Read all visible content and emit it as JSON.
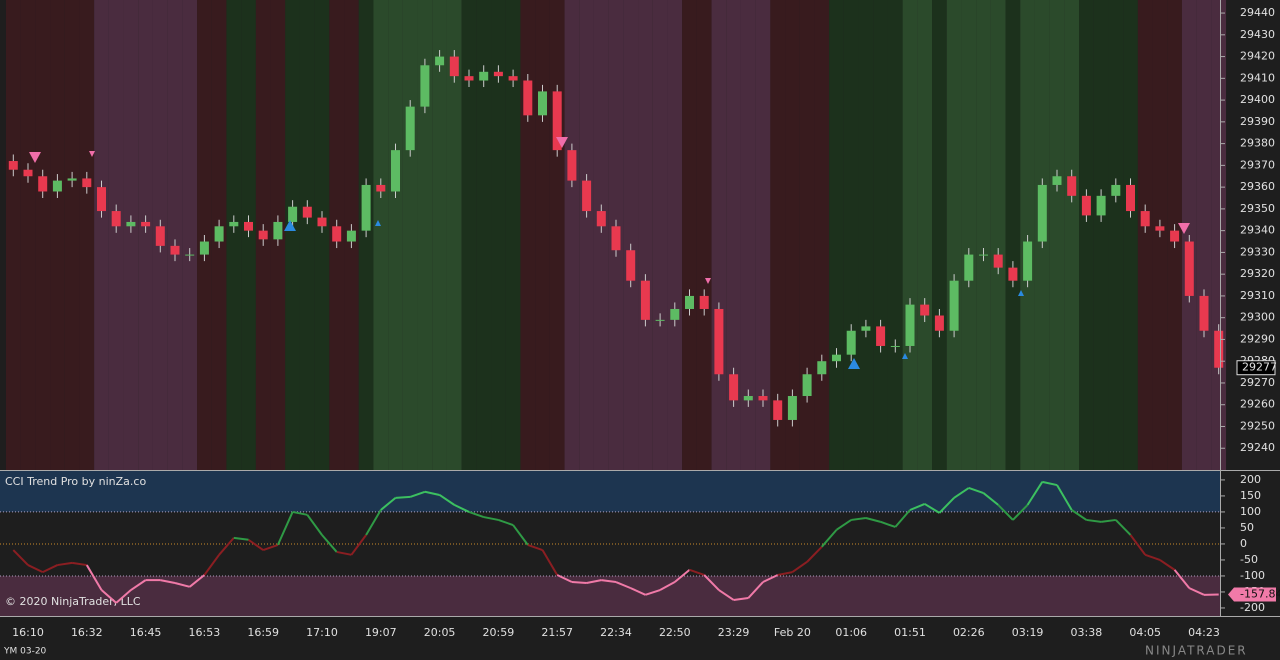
{
  "chart_data": [
    {
      "type": "candlestick",
      "symbol": "YM 03-20",
      "copyright": "© 2020 NinjaTrader, LLC",
      "brand": "NINJATRADER",
      "categories": [
        null,
        "16:10",
        null,
        null,
        null,
        "16:32",
        null,
        null,
        null,
        "16:45",
        null,
        null,
        null,
        "16:53",
        null,
        null,
        null,
        "16:59",
        null,
        null,
        null,
        "17:10",
        null,
        null,
        null,
        "19:07",
        null,
        null,
        null,
        "20:05",
        null,
        null,
        null,
        "20:59",
        null,
        null,
        null,
        "21:57",
        null,
        null,
        null,
        "22:34",
        null,
        null,
        null,
        "22:50",
        null,
        null,
        null,
        "23:29",
        null,
        null,
        null,
        "Feb 20",
        null,
        null,
        null,
        "01:06",
        null,
        null,
        null,
        "01:51",
        null,
        null,
        null,
        "02:26",
        null,
        null,
        null,
        "03:19",
        null,
        null,
        null,
        "03:38",
        null,
        null,
        null,
        "04:05",
        null,
        null,
        null,
        "04:23",
        null
      ],
      "open": [
        29372,
        29368,
        29365,
        29358,
        29363,
        29364,
        29360,
        29349,
        29342,
        29344,
        29342,
        29333,
        29329,
        29329,
        29335,
        29342,
        29344,
        29340,
        29336,
        29344,
        29351,
        29346,
        29342,
        29335,
        29340,
        29361,
        29358,
        29377,
        29397,
        29416,
        29420,
        29411,
        29409,
        29413,
        29411,
        29409,
        29393,
        29404,
        29377,
        29363,
        29349,
        29342,
        29331,
        29317,
        29299,
        29299,
        29304,
        29310,
        29304,
        29274,
        29262,
        29264,
        29262,
        29253,
        29264,
        29274,
        29280,
        29283,
        29294,
        29296,
        29287,
        29287,
        29306,
        29301,
        29294,
        29317,
        29329,
        29329,
        29323,
        29317,
        29335,
        29361,
        29365,
        29356,
        29347,
        29356,
        29361,
        29349,
        29342,
        29340,
        29335,
        29310,
        29294
      ],
      "high": [
        29375,
        29371,
        29368,
        29366,
        29367,
        29367,
        29363,
        29352,
        29347,
        29347,
        29345,
        29336,
        29332,
        29338,
        29345,
        29347,
        29347,
        29343,
        29347,
        29354,
        29354,
        29349,
        29345,
        29343,
        29364,
        29364,
        29380,
        29400,
        29419,
        29423,
        29423,
        29414,
        29416,
        29416,
        29414,
        29412,
        29407,
        29407,
        29380,
        29366,
        29352,
        29345,
        29334,
        29320,
        29302,
        29307,
        29313,
        29313,
        29307,
        29277,
        29267,
        29267,
        29265,
        29267,
        29277,
        29283,
        29286,
        29297,
        29299,
        29299,
        29290,
        29309,
        29309,
        29304,
        29320,
        29332,
        29332,
        29332,
        29326,
        29338,
        29364,
        29368,
        29368,
        29359,
        29359,
        29364,
        29364,
        29352,
        29345,
        29343,
        29338,
        29313,
        29297
      ],
      "low": [
        29365,
        29362,
        29355,
        29355,
        29360,
        29357,
        29346,
        29339,
        29339,
        29339,
        29330,
        29326,
        29326,
        29326,
        29332,
        29339,
        29337,
        29333,
        29333,
        29341,
        29343,
        29339,
        29332,
        29332,
        29337,
        29355,
        29355,
        29374,
        29394,
        29413,
        29408,
        29406,
        29406,
        29408,
        29406,
        29390,
        29390,
        29374,
        29360,
        29346,
        29339,
        29328,
        29314,
        29296,
        29296,
        29296,
        29301,
        29301,
        29271,
        29259,
        29259,
        29259,
        29250,
        29250,
        29261,
        29271,
        29277,
        29280,
        29291,
        29284,
        29284,
        29284,
        29298,
        29291,
        29291,
        29314,
        29326,
        29320,
        29314,
        29314,
        29332,
        29358,
        29353,
        29344,
        29344,
        29353,
        29346,
        29339,
        29337,
        29332,
        29307,
        29291,
        29274
      ],
      "close": [
        29368,
        29365,
        29358,
        29363,
        29364,
        29360,
        29349,
        29342,
        29344,
        29342,
        29333,
        29329,
        29329,
        29335,
        29342,
        29344,
        29340,
        29336,
        29344,
        29351,
        29346,
        29342,
        29335,
        29340,
        29361,
        29358,
        29377,
        29397,
        29416,
        29420,
        29411,
        29409,
        29413,
        29411,
        29409,
        29393,
        29404,
        29377,
        29363,
        29349,
        29342,
        29331,
        29317,
        29299,
        29299,
        29304,
        29310,
        29304,
        29274,
        29262,
        29264,
        29262,
        29253,
        29264,
        29274,
        29280,
        29283,
        29294,
        29296,
        29287,
        29287,
        29306,
        29301,
        29294,
        29317,
        29329,
        29329,
        29323,
        29317,
        29335,
        29361,
        29365,
        29356,
        29347,
        29356,
        29361,
        29349,
        29342,
        29340,
        29335,
        29310,
        29294,
        29277
      ],
      "up_color": "#5dbb63",
      "down_color": "#e8394f",
      "ylim": [
        29230,
        29446
      ],
      "yticks": [
        29240,
        29250,
        29260,
        29270,
        29280,
        29290,
        29300,
        29310,
        29320,
        29330,
        29340,
        29350,
        29360,
        29370,
        29380,
        29390,
        29400,
        29410,
        29420,
        29430,
        29440
      ]
    },
    {
      "type": "line",
      "title": "CCI Trend Pro by ninZa.co",
      "values": [
        -19,
        -66,
        -88,
        -66,
        -59,
        -66,
        -144,
        -184,
        -144,
        -113,
        -113,
        -122,
        -134,
        -97,
        -34,
        19,
        13,
        -19,
        -3,
        100,
        91,
        28,
        -25,
        -34,
        28,
        106,
        144,
        147,
        163,
        153,
        122,
        100,
        84,
        75,
        59,
        -3,
        -19,
        -97,
        -119,
        -122,
        -113,
        -119,
        -138,
        -159,
        -144,
        -119,
        -81,
        -97,
        -144,
        -175,
        -169,
        -119,
        -97,
        -88,
        -56,
        -9,
        44,
        75,
        81,
        69,
        53,
        106,
        125,
        97,
        144,
        175,
        159,
        122,
        75,
        122,
        194,
        184,
        106,
        75,
        69,
        75,
        28,
        -34,
        -50,
        -81,
        -138,
        -159,
        -157.84
      ],
      "ylim": [
        -222,
        231
      ],
      "yticks": [
        -200,
        -150,
        -100,
        -50,
        0,
        50,
        100,
        150,
        200
      ],
      "levels": [
        100,
        0,
        -100
      ],
      "line_colors": [
        "#3cc060",
        "#2f9a45",
        "#8b1e22",
        "#f07aa8"
      ],
      "zone_colors": [
        "#2b4a2b",
        "#1c311c",
        "#381b1e",
        "#4a2c3f"
      ],
      "band_colors": [
        "#1d3550",
        "#1e1e1e",
        "#4a2c3f"
      ]
    }
  ]
}
